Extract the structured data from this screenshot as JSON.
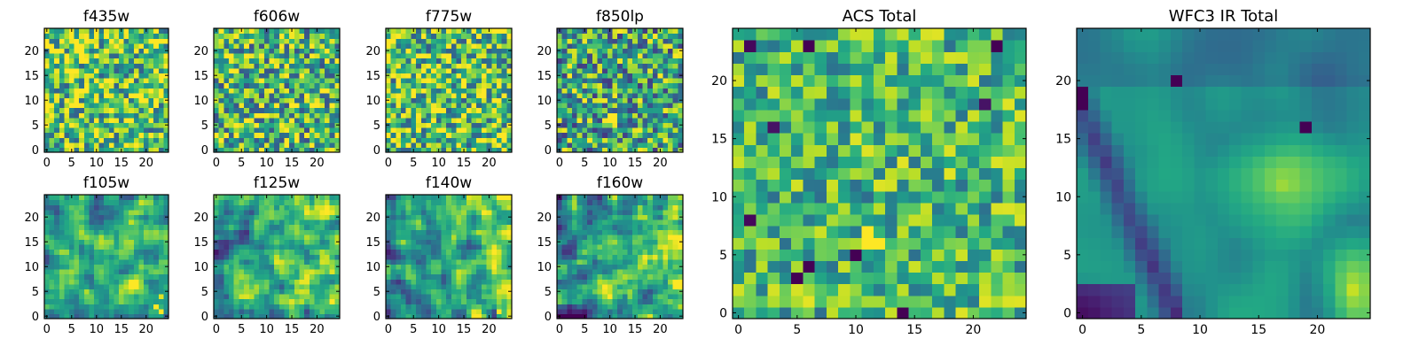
{
  "chart_data": [
    {
      "type": "heatmap",
      "title": "f435w",
      "xticks": [
        "0",
        "5",
        "10",
        "15",
        "20"
      ],
      "yticks": [
        "0",
        "5",
        "10",
        "15",
        "20"
      ],
      "xlim": [
        0,
        25
      ],
      "ylim": [
        0,
        25
      ],
      "grid": false,
      "legend": "none",
      "colormap": "viridis",
      "pattern": "noise",
      "mean": 0.72,
      "spread": 0.42,
      "seed": 11,
      "hot_spots": []
    },
    {
      "type": "heatmap",
      "title": "f606w",
      "xticks": [
        "0",
        "5",
        "10",
        "15",
        "20"
      ],
      "yticks": [
        "0",
        "5",
        "10",
        "15",
        "20"
      ],
      "xlim": [
        0,
        25
      ],
      "ylim": [
        0,
        25
      ],
      "grid": false,
      "legend": "none",
      "colormap": "viridis",
      "pattern": "noise",
      "mean": 0.66,
      "spread": 0.42,
      "seed": 23,
      "hot_spots": [
        {
          "x": 13,
          "y": 13,
          "value": 0.95
        }
      ]
    },
    {
      "type": "heatmap",
      "title": "f775w",
      "xticks": [
        "0",
        "5",
        "10",
        "15",
        "20"
      ],
      "yticks": [
        "0",
        "5",
        "10",
        "15",
        "20"
      ],
      "xlim": [
        0,
        25
      ],
      "ylim": [
        0,
        25
      ],
      "grid": false,
      "legend": "none",
      "colormap": "viridis",
      "pattern": "noise",
      "mean": 0.7,
      "spread": 0.42,
      "seed": 37,
      "hot_spots": [
        {
          "x": 1,
          "y": 23,
          "value": 0.97
        }
      ]
    },
    {
      "type": "heatmap",
      "title": "f850lp",
      "xticks": [
        "0",
        "5",
        "10",
        "15",
        "20"
      ],
      "yticks": [
        "0",
        "5",
        "10",
        "15",
        "20"
      ],
      "xlim": [
        0,
        25
      ],
      "ylim": [
        0,
        25
      ],
      "grid": false,
      "legend": "none",
      "colormap": "viridis",
      "pattern": "noise",
      "mean": 0.58,
      "spread": 0.42,
      "seed": 41,
      "hot_spots": [
        {
          "x": 10,
          "y": 6,
          "value": 1.0
        },
        {
          "x": 11,
          "y": 6,
          "value": 1.0
        },
        {
          "x": 10,
          "y": 7,
          "value": 1.0
        },
        {
          "x": 11,
          "y": 7,
          "value": 1.0
        }
      ]
    },
    {
      "type": "heatmap",
      "title": "f105w",
      "xticks": [
        "0",
        "5",
        "10",
        "15",
        "20"
      ],
      "yticks": [
        "0",
        "5",
        "10",
        "15",
        "20"
      ],
      "xlim": [
        0,
        25
      ],
      "ylim": [
        0,
        25
      ],
      "grid": false,
      "legend": "none",
      "colormap": "viridis",
      "pattern": "smooth",
      "mean": 0.6,
      "spread": 0.35,
      "seed": 53,
      "hot_spots": [
        {
          "x": 22,
          "y": 2,
          "value": 1.0
        },
        {
          "x": 23,
          "y": 1,
          "value": 1.0
        },
        {
          "x": 23,
          "y": 4,
          "value": 0.95
        }
      ]
    },
    {
      "type": "heatmap",
      "title": "f125w",
      "xticks": [
        "0",
        "5",
        "10",
        "15",
        "20"
      ],
      "yticks": [
        "0",
        "5",
        "10",
        "15",
        "20"
      ],
      "xlim": [
        0,
        25
      ],
      "ylim": [
        0,
        25
      ],
      "grid": false,
      "legend": "none",
      "colormap": "viridis",
      "pattern": "smooth",
      "mean": 0.62,
      "spread": 0.4,
      "seed": 67,
      "hot_spots": [
        {
          "x": 23,
          "y": 3,
          "value": 1.0
        },
        {
          "x": 23,
          "y": 9,
          "value": 0.95
        }
      ]
    },
    {
      "type": "heatmap",
      "title": "f140w",
      "xticks": [
        "0",
        "5",
        "10",
        "15",
        "20"
      ],
      "yticks": [
        "0",
        "5",
        "10",
        "15",
        "20"
      ],
      "xlim": [
        0,
        25
      ],
      "ylim": [
        0,
        25
      ],
      "grid": false,
      "legend": "none",
      "colormap": "viridis",
      "pattern": "smooth",
      "mean": 0.6,
      "spread": 0.4,
      "seed": 79,
      "hot_spots": [
        {
          "x": 22,
          "y": 1,
          "value": 1.0
        },
        {
          "x": 23,
          "y": 5,
          "value": 0.95
        }
      ]
    },
    {
      "type": "heatmap",
      "title": "f160w",
      "xticks": [
        "0",
        "5",
        "10",
        "15",
        "20"
      ],
      "yticks": [
        "0",
        "5",
        "10",
        "15",
        "20"
      ],
      "xlim": [
        0,
        25
      ],
      "ylim": [
        0,
        25
      ],
      "grid": false,
      "legend": "none",
      "colormap": "viridis",
      "pattern": "smooth",
      "mean": 0.55,
      "spread": 0.42,
      "seed": 97,
      "hot_spots": [
        {
          "x": 23,
          "y": 6,
          "value": 1.0
        },
        {
          "x": 23,
          "y": 7,
          "value": 1.0
        }
      ]
    },
    {
      "type": "heatmap",
      "title": "ACS Total",
      "xticks": [
        "0",
        "5",
        "10",
        "15",
        "20"
      ],
      "yticks": [
        "0",
        "5",
        "10",
        "15",
        "20"
      ],
      "xlim": [
        0,
        25
      ],
      "ylim": [
        0,
        25
      ],
      "grid": false,
      "legend": "none",
      "colormap": "viridis",
      "pattern": "noise",
      "mean": 0.66,
      "spread": 0.3,
      "seed": 103,
      "hot_spots": [
        {
          "x": 11,
          "y": 6,
          "value": 1.0
        },
        {
          "x": 11,
          "y": 7,
          "value": 1.0
        },
        {
          "x": 12,
          "y": 6,
          "value": 1.0
        },
        {
          "x": 10,
          "y": 15,
          "value": 0.95
        },
        {
          "x": 11,
          "y": 14,
          "value": 0.95
        },
        {
          "x": 5,
          "y": 3,
          "value": 0.0
        },
        {
          "x": 6,
          "y": 4,
          "value": 0.0
        },
        {
          "x": 14,
          "y": 0,
          "value": 0.0
        },
        {
          "x": 10,
          "y": 5,
          "value": 0.0
        },
        {
          "x": 1,
          "y": 8,
          "value": 0.02
        },
        {
          "x": 6,
          "y": 23,
          "value": 0.0
        },
        {
          "x": 22,
          "y": 23,
          "value": 0.0
        },
        {
          "x": 1,
          "y": 23,
          "value": 0.02
        },
        {
          "x": 3,
          "y": 16,
          "value": 0.05
        },
        {
          "x": 21,
          "y": 18,
          "value": 0.05
        }
      ]
    },
    {
      "type": "heatmap",
      "title": "WFC3 IR Total",
      "xticks": [
        "0",
        "5",
        "10",
        "15",
        "20"
      ],
      "yticks": [
        "0",
        "5",
        "10",
        "15",
        "20"
      ],
      "xlim": [
        0,
        25
      ],
      "ylim": [
        0,
        25
      ],
      "grid": false,
      "legend": "none",
      "colormap": "viridis",
      "pattern": "wfc3",
      "mean": 0.5,
      "spread": 0.2,
      "seed": 131,
      "hot_spots": [
        {
          "x": 0,
          "y": 18,
          "value": 0.0
        },
        {
          "x": 0,
          "y": 19,
          "value": 0.0
        },
        {
          "x": 8,
          "y": 20,
          "value": 0.0
        },
        {
          "x": 19,
          "y": 16,
          "value": 0.0
        }
      ]
    }
  ]
}
